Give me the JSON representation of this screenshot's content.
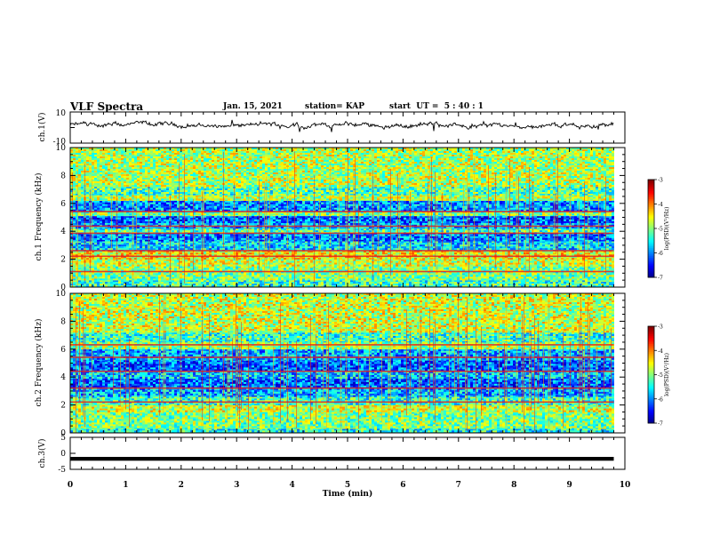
{
  "header": {
    "title": "VLF Spectra",
    "date": "Jan. 15, 2021",
    "station": "station= KAP",
    "start_ut": "start  UT =  5 : 40 : 1"
  },
  "chart_data": [
    {
      "type": "line",
      "panel": "ch1-waveform",
      "ylabel": "ch.1(V)",
      "ylim": [
        -10,
        10
      ],
      "y_ticks": [
        "10",
        "-10"
      ],
      "xlim": [
        0,
        10
      ],
      "x_end": 9.8,
      "series": [
        {
          "color": "#000000",
          "approx_mean": 1.5,
          "approx_range": [
            -3,
            3
          ]
        }
      ]
    },
    {
      "type": "heatmap",
      "panel": "ch1-spectrogram",
      "ylabel": "ch.1 Frequency (kHz)",
      "ylim": [
        0,
        10
      ],
      "y_ticks": [
        "0",
        "2",
        "4",
        "6",
        "8",
        "10"
      ],
      "xlim": [
        0,
        10
      ],
      "x_end": 9.8,
      "colorbar": {
        "label": "log(PSD)(V²/Hz)",
        "range": [
          -7,
          -3
        ],
        "ticks": [
          "-3",
          "-4",
          "-5",
          "-6",
          "-7"
        ]
      },
      "bands": [
        {
          "f": [
            0.0,
            0.5
          ],
          "level": -5.3
        },
        {
          "f": [
            0.5,
            1.5
          ],
          "level": -5.0
        },
        {
          "f": [
            1.5,
            2.0
          ],
          "level": -4.7
        },
        {
          "f": [
            2.0,
            2.6
          ],
          "level": -4.5
        },
        {
          "f": [
            2.6,
            3.3
          ],
          "level": -5.6
        },
        {
          "f": [
            3.3,
            3.9
          ],
          "level": -6.0
        },
        {
          "f": [
            3.9,
            4.2
          ],
          "level": -5.2
        },
        {
          "f": [
            4.2,
            4.6
          ],
          "level": -5.8
        },
        {
          "f": [
            4.6,
            5.1
          ],
          "level": -6.1
        },
        {
          "f": [
            5.1,
            5.4
          ],
          "level": -5.0
        },
        {
          "f": [
            5.4,
            6.2
          ],
          "level": -5.9
        },
        {
          "f": [
            6.2,
            6.6
          ],
          "level": -4.8
        },
        {
          "f": [
            6.6,
            7.2
          ],
          "level": -5.2
        },
        {
          "f": [
            7.2,
            10.0
          ],
          "level": -4.8
        }
      ],
      "lines_khz": [
        1.1,
        2.2,
        2.6,
        3.85,
        4.35,
        5.4
      ]
    },
    {
      "type": "heatmap",
      "panel": "ch2-spectrogram",
      "ylabel": "ch.2 Frequency (kHz)",
      "ylim": [
        0,
        10
      ],
      "y_ticks": [
        "0",
        "2",
        "4",
        "6",
        "8",
        "10"
      ],
      "xlim": [
        0,
        10
      ],
      "x_end": 9.8,
      "colorbar": {
        "label": "log(PSD)(V²/Hz)",
        "range": [
          -7,
          -3
        ],
        "ticks": [
          "-3",
          "-4",
          "-5",
          "-6",
          "-7"
        ]
      },
      "bands": [
        {
          "f": [
            0.0,
            0.3
          ],
          "level": -5.4
        },
        {
          "f": [
            0.3,
            1.5
          ],
          "level": -5.0
        },
        {
          "f": [
            1.5,
            2.0
          ],
          "level": -4.7
        },
        {
          "f": [
            2.0,
            2.6
          ],
          "level": -5.3
        },
        {
          "f": [
            2.6,
            3.2
          ],
          "level": -5.8
        },
        {
          "f": [
            3.2,
            3.9
          ],
          "level": -6.1
        },
        {
          "f": [
            3.9,
            4.4
          ],
          "level": -5.7
        },
        {
          "f": [
            4.4,
            5.2
          ],
          "level": -6.1
        },
        {
          "f": [
            5.2,
            6.0
          ],
          "level": -5.8
        },
        {
          "f": [
            6.0,
            6.5
          ],
          "level": -4.9
        },
        {
          "f": [
            6.5,
            7.2
          ],
          "level": -5.3
        },
        {
          "f": [
            7.2,
            10.0
          ],
          "level": -4.7
        }
      ],
      "lines_khz": [
        2.2,
        3.2,
        4.4,
        5.4,
        6.3
      ]
    },
    {
      "type": "line",
      "panel": "ch3-waveform",
      "ylabel": "ch.3(V)",
      "ylim": [
        -5,
        5
      ],
      "y_ticks": [
        "5",
        "0",
        "-5"
      ],
      "xlim": [
        0,
        10
      ],
      "x_end": 9.8,
      "series": [
        {
          "color": "#000000",
          "approx_mean": -1.7,
          "approx_range": [
            -2.3,
            -1.1
          ]
        }
      ]
    }
  ],
  "x_axis": {
    "label": "Time (min)",
    "ticks": [
      "0",
      "1",
      "2",
      "3",
      "4",
      "5",
      "6",
      "7",
      "8",
      "9",
      "10"
    ]
  }
}
